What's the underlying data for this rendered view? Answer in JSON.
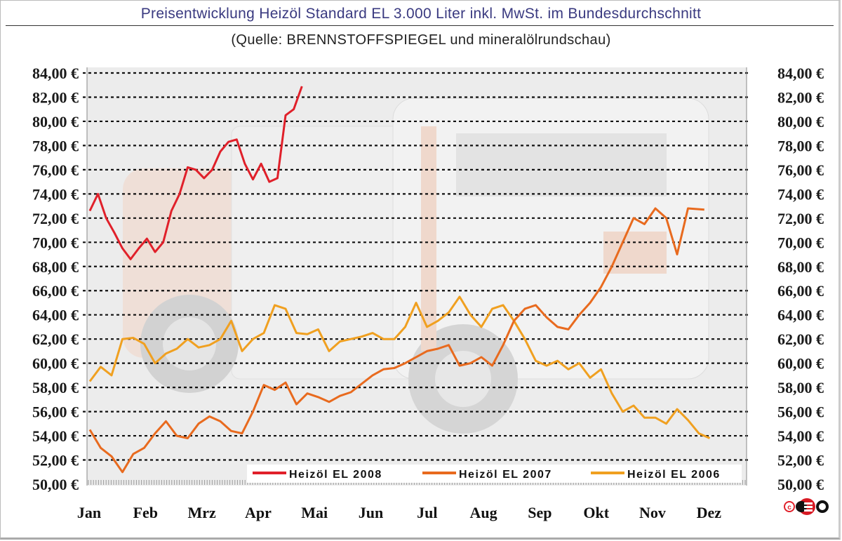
{
  "header": {
    "title": "Preisentwicklung Heizöl Standard EL 3.000 Liter inkl. MwSt. im Bundesdurchschnitt",
    "subtitle": "(Quelle: BRENNSTOFFSPIEGEL und mineralölrundschau)"
  },
  "copyright": {
    "symbol": "©",
    "logo_text": "CETO"
  },
  "chart_data": {
    "type": "line",
    "title": "Preisentwicklung Heizöl Standard EL 3.000 Liter inkl. MwSt. im Bundesdurchschnitt",
    "subtitle": "(Quelle: BRENNSTOFFSPIEGEL und mineralölrundschau)",
    "xlabel": "",
    "ylabel": "",
    "ylim": [
      50,
      84
    ],
    "grid": true,
    "legend_position": "bottom-inside",
    "categories": [
      "Jan",
      "Feb",
      "Mrz",
      "Apr",
      "Mai",
      "Jun",
      "Jul",
      "Aug",
      "Sep",
      "Okt",
      "Nov",
      "Dez"
    ],
    "yticks": [
      "50,00 €",
      "52,00 €",
      "54,00 €",
      "56,00 €",
      "58,00 €",
      "60,00 €",
      "62,00 €",
      "64,00 €",
      "66,00 €",
      "68,00 €",
      "70,00 €",
      "72,00 €",
      "74,00 €",
      "76,00 €",
      "78,00 €",
      "80,00 €",
      "82,00 €",
      "84,00 €"
    ],
    "series": [
      {
        "name": "Heizöl EL 2008",
        "color": "#e0202a",
        "x": [
          0.0,
          0.15,
          0.3,
          0.45,
          0.6,
          0.75,
          0.9,
          1.05,
          1.2,
          1.35,
          1.5,
          1.65,
          1.8,
          1.95,
          2.1,
          2.25,
          2.4,
          2.55,
          2.7,
          2.85,
          3.0,
          3.15,
          3.3,
          3.45,
          3.6,
          3.75,
          3.9
        ],
        "values": [
          72.6,
          74.0,
          72.0,
          70.8,
          69.5,
          68.6,
          69.5,
          70.3,
          69.2,
          70.0,
          72.6,
          74.0,
          76.2,
          76.0,
          75.3,
          76.0,
          77.5,
          78.3,
          78.5,
          76.5,
          75.2,
          76.5,
          75.0,
          75.3,
          80.5,
          81.0,
          82.9
        ]
      },
      {
        "name": "Heizöl EL 2007",
        "color": "#e86a1e",
        "x": [
          0.0,
          0.2,
          0.4,
          0.6,
          0.8,
          1.0,
          1.2,
          1.4,
          1.6,
          1.8,
          2.0,
          2.2,
          2.4,
          2.6,
          2.8,
          3.0,
          3.2,
          3.4,
          3.6,
          3.8,
          4.0,
          4.2,
          4.4,
          4.6,
          4.8,
          5.0,
          5.2,
          5.4,
          5.6,
          5.8,
          6.0,
          6.2,
          6.4,
          6.6,
          6.8,
          7.0,
          7.2,
          7.4,
          7.6,
          7.8,
          8.0,
          8.2,
          8.4,
          8.6,
          8.8,
          9.0,
          9.2,
          9.4,
          9.6,
          9.8,
          10.0,
          10.2,
          10.4,
          10.6,
          10.8,
          11.0,
          11.3
        ],
        "values": [
          54.5,
          53.0,
          52.3,
          51.0,
          52.5,
          53.0,
          54.2,
          55.2,
          54.0,
          53.8,
          55.0,
          55.6,
          55.2,
          54.4,
          54.2,
          56.0,
          58.2,
          57.8,
          58.4,
          56.6,
          57.5,
          57.2,
          56.8,
          57.3,
          57.6,
          58.3,
          59.0,
          59.5,
          59.6,
          60.0,
          60.5,
          61.0,
          61.2,
          61.5,
          59.8,
          60.0,
          60.5,
          59.8,
          61.5,
          63.5,
          64.5,
          64.8,
          63.8,
          63.0,
          62.8,
          64.0,
          65.0,
          66.3,
          68.0,
          70.0,
          72.0,
          71.5,
          72.8,
          72.0,
          69.0,
          72.8,
          72.7
        ]
      },
      {
        "name": "Heizöl EL 2006",
        "color": "#f0a020",
        "x": [
          0.0,
          0.2,
          0.4,
          0.6,
          0.8,
          1.0,
          1.2,
          1.4,
          1.6,
          1.8,
          2.0,
          2.2,
          2.4,
          2.6,
          2.8,
          3.0,
          3.2,
          3.4,
          3.6,
          3.8,
          4.0,
          4.2,
          4.4,
          4.6,
          4.8,
          5.0,
          5.2,
          5.4,
          5.6,
          5.8,
          6.0,
          6.2,
          6.4,
          6.6,
          6.8,
          7.0,
          7.2,
          7.4,
          7.6,
          7.8,
          8.0,
          8.2,
          8.4,
          8.6,
          8.8,
          9.0,
          9.2,
          9.4,
          9.6,
          9.8,
          10.0,
          10.2,
          10.4,
          10.6,
          10.8,
          11.0,
          11.2,
          11.4
        ],
        "values": [
          58.5,
          59.7,
          59.0,
          62.0,
          62.1,
          61.6,
          60.0,
          60.8,
          61.2,
          62.0,
          61.3,
          61.5,
          62.0,
          63.5,
          61.0,
          62.0,
          62.5,
          64.8,
          64.5,
          62.5,
          62.4,
          62.8,
          61.0,
          61.8,
          62.0,
          62.2,
          62.5,
          62.0,
          62.0,
          63.0,
          65.0,
          63.0,
          63.5,
          64.2,
          65.5,
          64.0,
          63.0,
          64.5,
          64.8,
          63.5,
          62.0,
          60.2,
          59.8,
          60.2,
          59.5,
          60.0,
          58.8,
          59.5,
          57.5,
          56.0,
          56.5,
          55.5,
          55.5,
          55.0,
          56.2,
          55.3,
          54.2,
          53.8
        ]
      }
    ]
  }
}
